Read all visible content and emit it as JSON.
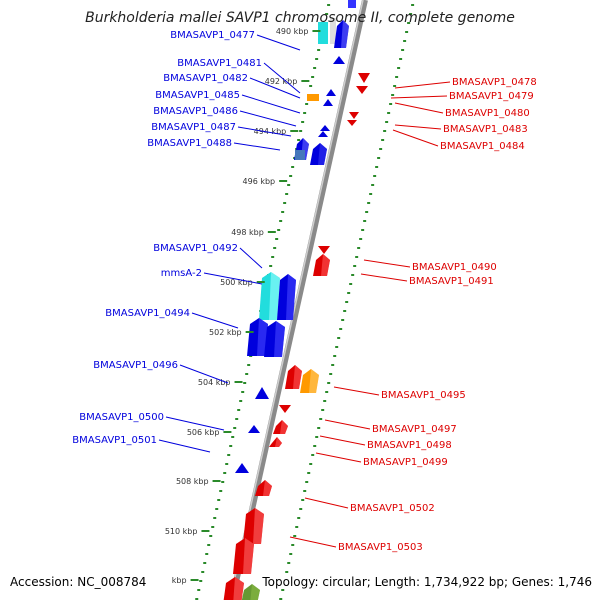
{
  "title": "Burkholderia mallei SAVP1 chromosome II, complete genome",
  "footer": {
    "accession": "Accession: NC_008784",
    "summary": "Topology: circular; Length: 1,734,922 bp; Genes: 1,746"
  },
  "colors": {
    "backbone": "#8a8a8a",
    "ticks": "#2a8a2a",
    "forward": "#0000dd",
    "reverse": "#dd0000",
    "rna": "#22dddd",
    "other": "#ff9900"
  },
  "scale": {
    "labels": [
      "490 kbp",
      "492 kbp",
      "494 kbp",
      "496 kbp",
      "498 kbp",
      "500 kbp",
      "502 kbp",
      "504 kbp",
      "506 kbp",
      "508 kbp",
      "510 kbp",
      "kbp"
    ]
  },
  "left_labels": [
    "BMASAVP1_0477",
    "BMASAVP1_0481",
    "BMASAVP1_0482",
    "BMASAVP1_0485",
    "BMASAVP1_0486",
    "BMASAVP1_0487",
    "BMASAVP1_0488",
    "BMASAVP1_0492",
    "mmsA-2",
    "BMASAVP1_0494",
    "BMASAVP1_0496",
    "BMASAVP1_0500",
    "BMASAVP1_0501"
  ],
  "right_labels": [
    "BMASAVP1_0478",
    "BMASAVP1_0479",
    "BMASAVP1_0480",
    "BMASAVP1_0483",
    "BMASAVP1_0484",
    "BMASAVP1_0490",
    "BMASAVP1_0491",
    "BMASAVP1_0495",
    "BMASAVP1_0497",
    "BMASAVP1_0498",
    "BMASAVP1_0499",
    "BMASAVP1_0502",
    "BMASAVP1_0503"
  ]
}
